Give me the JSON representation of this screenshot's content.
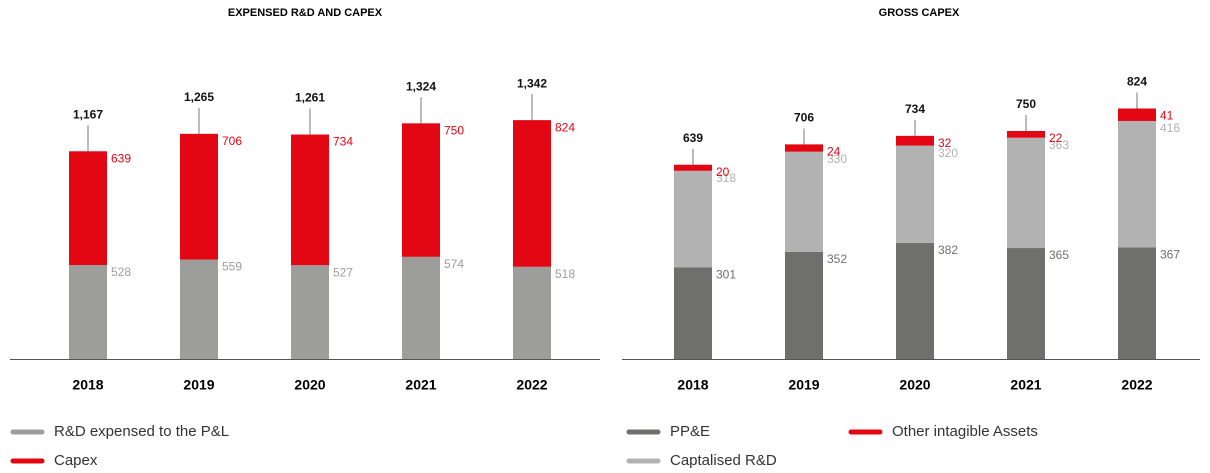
{
  "chart_data": [
    {
      "type": "stacked_bar",
      "title": "EXPENSED R&D AND CAPEX",
      "categories": [
        "2018",
        "2019",
        "2020",
        "2021",
        "2022"
      ],
      "series": [
        {
          "name": "R&D expensed to the P&L",
          "color": "#9d9d9c",
          "values": [
            528,
            559,
            527,
            574,
            518
          ]
        },
        {
          "name": "Capex",
          "color": "#e30613",
          "values": [
            639,
            706,
            734,
            750,
            824
          ]
        }
      ],
      "totals": [
        1167,
        1265,
        1261,
        1324,
        1342
      ],
      "total_labels": [
        "1,167",
        "1,265",
        "1,261",
        "1,324",
        "1,342"
      ]
    },
    {
      "type": "stacked_bar",
      "title": "GROSS CAPEX",
      "categories": [
        "2018",
        "2019",
        "2020",
        "2021",
        "2022"
      ],
      "series": [
        {
          "name": "PP&E",
          "color": "#6f6f6e",
          "values": [
            301,
            352,
            382,
            365,
            367
          ]
        },
        {
          "name": "Captalised R&D",
          "color": "#b2b2b2",
          "values": [
            318,
            330,
            320,
            363,
            416
          ]
        },
        {
          "name": "Other intagible Assets",
          "color": "#e30613",
          "values": [
            20,
            24,
            32,
            22,
            41
          ]
        }
      ],
      "totals": [
        639,
        706,
        734,
        750,
        824
      ]
    }
  ]
}
